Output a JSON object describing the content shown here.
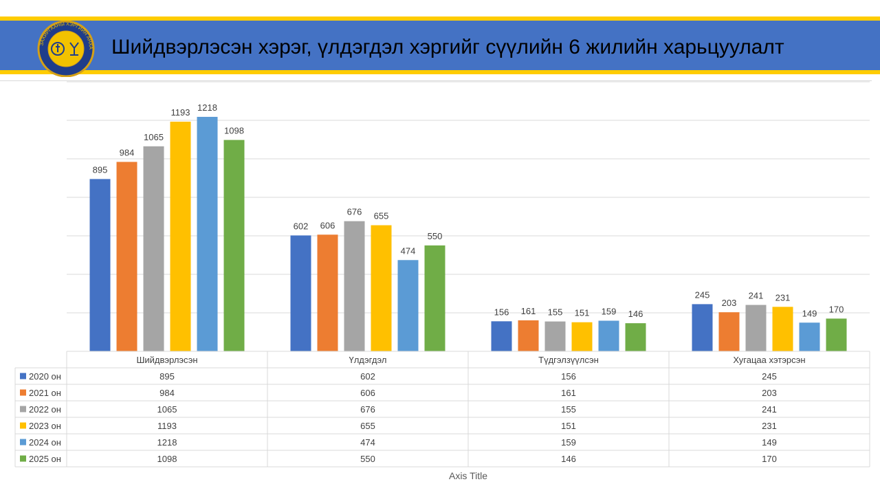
{
  "header": {
    "title": "Шийдвэрлэсэн хэрэг, үлдэгдэл хэргийг сүүлийн 6 жилийн харьцуулалт",
    "seal_text": "ЗАХИРГААНЫ ХЭРГИЙН АНХАН ШАТНЫ ШҮҮХ",
    "accent_color": "#ffcc00",
    "banner_color": "#4472c4"
  },
  "chart_data": {
    "type": "bar",
    "categories": [
      "Шийдвэрлэсэн",
      "Үлдэгдэл",
      "Түдгэлзүүлсэн",
      "Хугацаа хэтэрсэн"
    ],
    "series": [
      {
        "name": "2020 он",
        "color": "#4472c4",
        "values": [
          895,
          602,
          156,
          245
        ]
      },
      {
        "name": "2021 он",
        "color": "#ed7d31",
        "values": [
          984,
          606,
          161,
          203
        ]
      },
      {
        "name": "2022 он",
        "color": "#a5a5a5",
        "values": [
          1065,
          676,
          155,
          241
        ]
      },
      {
        "name": "2023 он",
        "color": "#ffc000",
        "values": [
          1193,
          655,
          151,
          231
        ]
      },
      {
        "name": "2024 он",
        "color": "#5b9bd5",
        "values": [
          1218,
          474,
          159,
          149
        ]
      },
      {
        "name": "2025 он",
        "color": "#70ad47",
        "values": [
          1098,
          550,
          146,
          170
        ]
      }
    ],
    "xlabel": "Axis Title",
    "ylim": [
      0,
      1400
    ],
    "grid": true,
    "data_labels": true,
    "legend": "data-table"
  }
}
